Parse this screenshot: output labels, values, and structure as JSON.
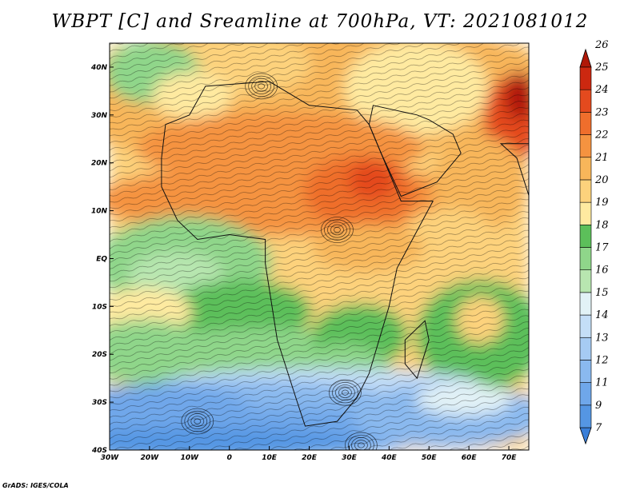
{
  "title": "WBPT [C] and Sreamline at 700hPa, VT: 2021081012",
  "credit": "GrADS: IGES/COLA",
  "map": {
    "lon_range": [
      -30,
      75
    ],
    "lat_range": [
      -40,
      45
    ],
    "x_ticks": [
      {
        "value": -30,
        "label": "30W"
      },
      {
        "value": -20,
        "label": "20W"
      },
      {
        "value": -10,
        "label": "10W"
      },
      {
        "value": 0,
        "label": "0"
      },
      {
        "value": 10,
        "label": "10E"
      },
      {
        "value": 20,
        "label": "20E"
      },
      {
        "value": 30,
        "label": "30E"
      },
      {
        "value": 40,
        "label": "40E"
      },
      {
        "value": 50,
        "label": "50E"
      },
      {
        "value": 60,
        "label": "60E"
      },
      {
        "value": 70,
        "label": "70E"
      }
    ],
    "y_ticks": [
      {
        "value": 40,
        "label": "40N"
      },
      {
        "value": 30,
        "label": "30N"
      },
      {
        "value": 20,
        "label": "20N"
      },
      {
        "value": 10,
        "label": "10N"
      },
      {
        "value": 0,
        "label": "EQ"
      },
      {
        "value": -10,
        "label": "10S"
      },
      {
        "value": -20,
        "label": "20S"
      },
      {
        "value": -30,
        "label": "30S"
      },
      {
        "value": -40,
        "label": "40S"
      }
    ]
  },
  "colorbar": {
    "levels": [
      "7",
      "9",
      "11",
      "12",
      "13",
      "14",
      "15",
      "16",
      "17",
      "18",
      "19",
      "20",
      "21",
      "22",
      "23",
      "24",
      "25",
      "26"
    ],
    "colors": [
      "#3a7fd9",
      "#5596e3",
      "#6fa7ea",
      "#8ab9ef",
      "#a6cbf3",
      "#c4def7",
      "#e2f2f6",
      "#b8e6b0",
      "#8fd68a",
      "#5cbf5a",
      "#ffeaa0",
      "#fdd27c",
      "#f8b65a",
      "#f59340",
      "#ef6e2c",
      "#e44a1e",
      "#cc2810",
      "#b01808"
    ]
  },
  "fields": {
    "warm_cores": [
      {
        "lon": 27,
        "lat": 14,
        "value": 24
      },
      {
        "lon": 73,
        "lat": 28,
        "value": 25
      }
    ],
    "cyclones": [
      {
        "lon": 8,
        "lat": 36
      },
      {
        "lon": 27,
        "lat": 6
      },
      {
        "lon": -8,
        "lat": -34
      },
      {
        "lon": 29,
        "lat": -28
      },
      {
        "lon": 33,
        "lat": -39
      }
    ]
  }
}
